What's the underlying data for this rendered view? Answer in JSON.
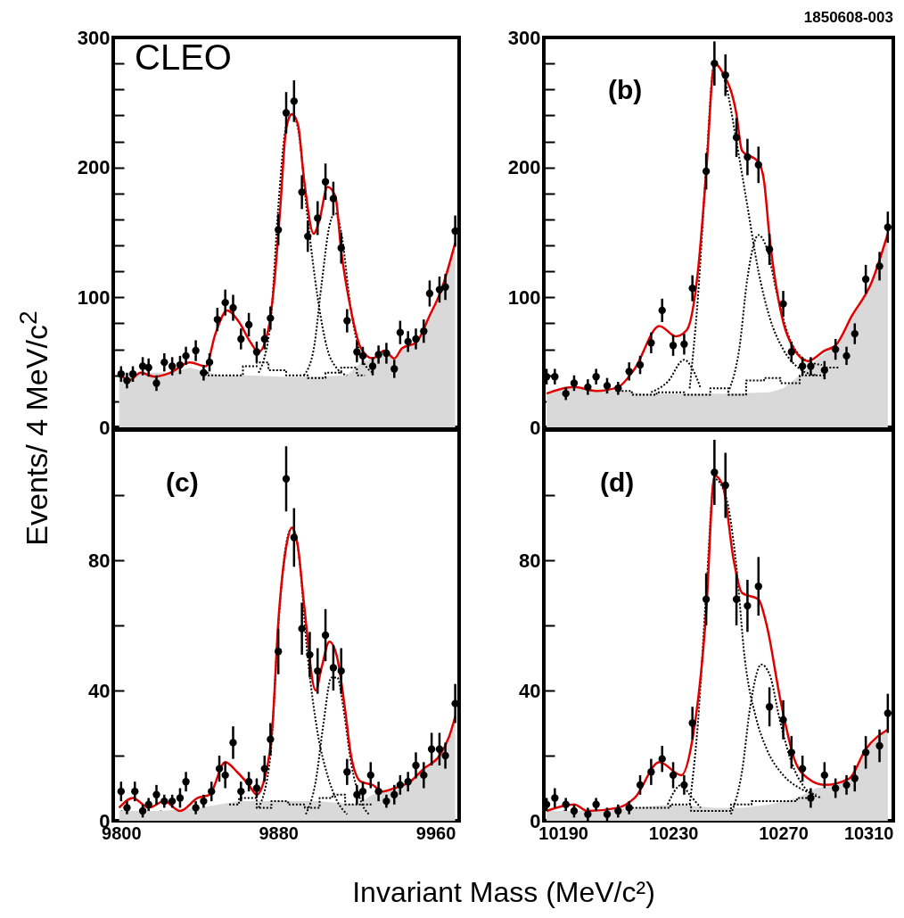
{
  "chart_data": [
    {
      "type": "scatter",
      "ylabel": "Events/ 4 MeV/c$^{2}$",
      "annotations": [
        "CLEO"
      ],
      "xlim": [
        9796,
        9972
      ],
      "ylim": [
        0,
        300
      ],
      "xticks": [
        9800,
        {
          "value": 9820,
          "label": null
        },
        {
          "value": 9840,
          "label": null
        },
        {
          "value": 9860,
          "label": null
        },
        9880,
        {
          "value": 9900,
          "label": null
        },
        {
          "value": 9920,
          "label": null
        },
        {
          "value": 9940,
          "label": null
        },
        9960
      ],
      "yticks": [
        0,
        {
          "value": 20,
          "label": null
        },
        {
          "value": 40,
          "label": null
        },
        {
          "value": 60,
          "label": null
        },
        {
          "value": 80,
          "label": null
        },
        100,
        {
          "value": 120,
          "label": null
        },
        {
          "value": 140,
          "label": null
        },
        {
          "value": 160,
          "label": null
        },
        {
          "value": 180,
          "label": null
        },
        200,
        {
          "value": 220,
          "label": null
        },
        {
          "value": 240,
          "label": null
        },
        {
          "value": 260,
          "label": null
        },
        {
          "value": 280,
          "label": null
        },
        300
      ],
      "tick_labels": "y",
      "series": [
        {
          "type": "area",
          "color": "#d9d9d9",
          "x": [
            9799,
            9810,
            9825,
            9835,
            9850,
            9865,
            9880,
            9900,
            9915,
            9922,
            9928,
            9934,
            9939,
            9943,
            9950,
            9957,
            9963,
            9970
          ],
          "values": [
            42,
            42,
            42,
            46,
            40,
            40,
            39,
            39,
            40,
            50,
            53,
            59,
            53,
            61,
            65,
            86,
            106,
            142
          ]
        },
        {
          "type": "step",
          "color": "#000000",
          "line_style": "dotted",
          "x": [
            9840,
            9848,
            9858,
            9866,
            9872,
            9878,
            9890,
            9900,
            9908,
            9916,
            9924
          ],
          "values": [
            42,
            40,
            40,
            47,
            50,
            44,
            40,
            38,
            42,
            46,
            40
          ]
        },
        {
          "type": "line",
          "color": "#000000",
          "line_style": "dotted",
          "x": [
            9870,
            9876,
            9880,
            9884,
            9887,
            9890,
            9895,
            9900,
            9905,
            9910,
            9915
          ],
          "values": [
            42,
            80,
            170,
            232,
            241,
            230,
            160,
            100,
            60,
            45,
            40
          ]
        },
        {
          "type": "line",
          "color": "#000000",
          "line_style": "dotted",
          "x": [
            9893,
            9898,
            9902,
            9906,
            9909,
            9912,
            9917,
            9922,
            9928
          ],
          "values": [
            40,
            60,
            110,
            155,
            165,
            150,
            90,
            55,
            42
          ]
        },
        {
          "type": "line",
          "color": "#e00000",
          "line_style": "solid",
          "x": [
            9799,
            9804,
            9810,
            9817,
            9825,
            9835,
            9843,
            9848,
            9854,
            9860,
            9866,
            9870,
            9875,
            9878,
            9881,
            9884,
            9887,
            9890,
            9893,
            9898,
            9901,
            9905,
            9909,
            9912,
            9917,
            9922,
            9928,
            9934,
            9939,
            9943,
            9950,
            9957,
            9963,
            9970
          ],
          "values": [
            42,
            36,
            42,
            39,
            42,
            50,
            47,
            72,
            90,
            81,
            65,
            58,
            76,
            112,
            169,
            230,
            241,
            233,
            192,
            149,
            160,
            185,
            178,
            136,
            90,
            61,
            53,
            59,
            53,
            61,
            65,
            86,
            106,
            142
          ]
        },
        {
          "type": "scatter",
          "color": "#000000",
          "marker": "circle",
          "x": [
            9800,
            9803,
            9806,
            9811,
            9814,
            9818,
            9822,
            9826,
            9830,
            9833,
            9838,
            9842,
            9845,
            9849,
            9853,
            9857,
            9861,
            9865,
            9869,
            9873,
            9876,
            9880,
            9884,
            9888,
            9892,
            9895,
            9900,
            9904,
            9908,
            9912,
            9915,
            9920,
            9923,
            9928,
            9931,
            9935,
            9939,
            9942,
            9946,
            9950,
            9954,
            9957,
            9962,
            9965,
            9970
          ],
          "values": [
            41,
            36,
            41,
            47,
            46,
            34,
            50,
            47,
            48,
            55,
            59,
            42,
            50,
            83,
            96,
            92,
            68,
            79,
            58,
            68,
            84,
            152,
            242,
            251,
            181,
            147,
            161,
            189,
            176,
            138,
            82,
            58,
            55,
            47,
            56,
            57,
            45,
            73,
            66,
            68,
            74,
            103,
            106,
            108,
            151
          ],
          "errors": [
            6,
            6,
            6,
            7,
            7,
            6,
            7,
            7,
            7,
            7,
            8,
            6,
            7,
            9,
            10,
            10,
            8,
            9,
            8,
            8,
            9,
            12,
            16,
            16,
            13,
            12,
            13,
            14,
            13,
            12,
            9,
            8,
            7,
            7,
            7,
            8,
            7,
            9,
            8,
            8,
            9,
            10,
            10,
            10,
            12
          ]
        }
      ]
    },
    {
      "type": "scatter",
      "annotations": [
        "(b)",
        "1850608-003"
      ],
      "xlim": [
        10183,
        10310
      ],
      "ylim": [
        0,
        300
      ],
      "xticks": [
        10190,
        {
          "value": 10210,
          "label": null
        },
        10230,
        {
          "value": 10250,
          "label": null
        },
        10270,
        {
          "value": 10290,
          "label": null
        },
        10310
      ],
      "yticks": [
        0,
        {
          "value": 20,
          "label": null
        },
        {
          "value": 40,
          "label": null
        },
        {
          "value": 60,
          "label": null
        },
        {
          "value": 80,
          "label": null
        },
        100,
        {
          "value": 120,
          "label": null
        },
        {
          "value": 140,
          "label": null
        },
        {
          "value": 160,
          "label": null
        },
        {
          "value": 180,
          "label": null
        },
        200,
        {
          "value": 220,
          "label": null
        },
        {
          "value": 240,
          "label": null
        },
        {
          "value": 260,
          "label": null
        },
        {
          "value": 280,
          "label": null
        },
        300
      ],
      "tick_labels": "y",
      "series": [
        {
          "type": "area",
          "color": "#d9d9d9",
          "x": [
            10184,
            10194,
            10202,
            10210,
            10220,
            10235,
            10250,
            10265,
            10270,
            10276,
            10282,
            10289,
            10295,
            10302,
            10308
          ],
          "values": [
            26,
            31,
            28,
            28,
            26,
            26,
            26,
            27,
            30,
            40,
            52,
            63,
            86,
            111,
            149
          ]
        },
        {
          "type": "step",
          "color": "#000000",
          "line_style": "dotted",
          "x": [
            10210,
            10220,
            10228,
            10240,
            10247,
            10253,
            10260,
            10266,
            10272,
            10280,
            10290
          ],
          "values": [
            28,
            25,
            27,
            25,
            30,
            25,
            36,
            38,
            34,
            40,
            46
          ]
        },
        {
          "type": "line",
          "color": "#000000",
          "line_style": "dotted",
          "x": [
            10222,
            10228,
            10234,
            10237,
            10240
          ],
          "values": [
            27,
            35,
            52,
            45,
            30
          ]
        },
        {
          "type": "line",
          "color": "#000000",
          "line_style": "dotted",
          "x": [
            10236,
            10239,
            10242,
            10245,
            10249,
            10253,
            10257,
            10261,
            10265,
            10270,
            10276,
            10282
          ],
          "values": [
            30,
            100,
            200,
            280,
            265,
            220,
            170,
            120,
            85,
            60,
            45,
            40
          ]
        },
        {
          "type": "line",
          "color": "#000000",
          "line_style": "dotted",
          "x": [
            10250,
            10254,
            10257,
            10261,
            10264,
            10268,
            10272,
            10278,
            10284
          ],
          "values": [
            27,
            60,
            115,
            148,
            138,
            100,
            70,
            52,
            48
          ]
        },
        {
          "type": "line",
          "color": "#e00000",
          "line_style": "solid",
          "x": [
            10184,
            10194,
            10202,
            10210,
            10216,
            10225,
            10231,
            10235,
            10239,
            10242,
            10245,
            10248,
            10253,
            10255,
            10261,
            10263,
            10265,
            10270,
            10274,
            10279,
            10285,
            10289,
            10295,
            10302,
            10308
          ],
          "values": [
            26,
            31,
            28,
            31,
            45,
            78,
            70,
            75,
            120,
            196,
            280,
            273,
            241,
            213,
            204,
            190,
            147,
            81,
            60,
            51,
            59,
            63,
            86,
            111,
            149
          ]
        },
        {
          "type": "scatter",
          "color": "#000000",
          "marker": "circle",
          "x": [
            10184,
            10187,
            10191,
            10194,
            10199,
            10202,
            10206,
            10210,
            10214,
            10218,
            10222,
            10226,
            10230,
            10234,
            10237,
            10242,
            10245,
            10249,
            10253,
            10257,
            10261,
            10265,
            10270,
            10273,
            10277,
            10280,
            10285,
            10289,
            10293,
            10296,
            10300,
            10305,
            10308
          ],
          "values": [
            39,
            39,
            26,
            34,
            31,
            39,
            32,
            30,
            43,
            48,
            65,
            90,
            63,
            64,
            107,
            197,
            280,
            271,
            223,
            208,
            202,
            137,
            95,
            58,
            47,
            47,
            44,
            60,
            55,
            72,
            114,
            124,
            154
          ],
          "errors": [
            6,
            6,
            5,
            6,
            6,
            6,
            6,
            5,
            7,
            7,
            8,
            9,
            8,
            8,
            10,
            14,
            17,
            16,
            15,
            14,
            14,
            12,
            10,
            8,
            7,
            7,
            7,
            8,
            7,
            8,
            11,
            11,
            12
          ]
        }
      ]
    },
    {
      "type": "scatter",
      "xlabel": "Invariant Mass (MeV/c²)",
      "annotations": [
        "(c)"
      ],
      "xlim": [
        9796,
        9972
      ],
      "ylim": [
        0,
        120
      ],
      "xticks": [
        9800,
        {
          "value": 9820,
          "label": null
        },
        {
          "value": 9840,
          "label": null
        },
        {
          "value": 9860,
          "label": null
        },
        9880,
        {
          "value": 9900,
          "label": null
        },
        {
          "value": 9920,
          "label": null
        },
        {
          "value": 9940,
          "label": null
        },
        9960
      ],
      "yticks": [
        0,
        {
          "value": 20,
          "label": null
        },
        40,
        {
          "value": 60,
          "label": null
        },
        80,
        {
          "value": 100,
          "label": null
        }
      ],
      "series": [
        {
          "type": "area",
          "color": "#d9d9d9",
          "x": [
            9799,
            9820,
            9840,
            9860,
            9880,
            9900,
            9920,
            9928,
            9935,
            9947,
            9954,
            9962,
            9967,
            9970
          ],
          "values": [
            3,
            3,
            4,
            6,
            6,
            6,
            5,
            8,
            9,
            12,
            16,
            20,
            26,
            32
          ]
        },
        {
          "type": "step",
          "color": "#000000",
          "line_style": "dotted",
          "x": [
            9855,
            9865,
            9873,
            9880,
            9890,
            9897,
            9905,
            9910,
            9918,
            9928
          ],
          "values": [
            5,
            7,
            4,
            6,
            5,
            4,
            7,
            8,
            5,
            5
          ]
        },
        {
          "type": "line",
          "color": "#000000",
          "line_style": "dotted",
          "x": [
            9870,
            9876,
            9880,
            9884,
            9887,
            9890,
            9895,
            9900,
            9905,
            9910,
            9915
          ],
          "values": [
            4,
            20,
            60,
            85,
            90,
            84,
            50,
            27,
            14,
            6,
            2
          ]
        },
        {
          "type": "line",
          "color": "#000000",
          "line_style": "dotted",
          "x": [
            9894,
            9899,
            9903,
            9907,
            9910,
            9913,
            9917,
            9922,
            9926
          ],
          "values": [
            2,
            12,
            30,
            44,
            44,
            35,
            18,
            6,
            2
          ]
        },
        {
          "type": "line",
          "color": "#e00000",
          "line_style": "solid",
          "x": [
            9799,
            9806,
            9814,
            9822,
            9830,
            9839,
            9845,
            9853,
            9859,
            9865,
            9869,
            9873,
            9877,
            9880,
            9884,
            9887,
            9890,
            9893,
            9899,
            9902,
            9906,
            9910,
            9914,
            9917,
            9922,
            9928,
            9933,
            9939,
            9947,
            9954,
            9962,
            9967,
            9970
          ],
          "values": [
            4,
            7,
            4,
            6,
            3,
            7,
            8,
            18,
            15,
            11,
            8,
            13,
            29,
            61,
            84,
            90,
            84,
            67,
            40,
            47,
            55,
            50,
            34,
            20,
            12,
            11,
            9,
            10,
            12,
            16,
            20,
            26,
            32
          ]
        },
        {
          "type": "scatter",
          "color": "#000000",
          "marker": "circle",
          "x": [
            9800,
            9803,
            9807,
            9811,
            9814,
            9818,
            9822,
            9826,
            9830,
            9833,
            9838,
            9842,
            9846,
            9850,
            9853,
            9857,
            9861,
            9865,
            9869,
            9873,
            9876,
            9880,
            9884,
            9888,
            9892,
            9896,
            9900,
            9904,
            9908,
            9912,
            9915,
            9920,
            9923,
            9927,
            9931,
            9935,
            9939,
            9942,
            9946,
            9950,
            9954,
            9958,
            9962,
            9965,
            9970
          ],
          "values": [
            9,
            4,
            9,
            3,
            5,
            8,
            6,
            6,
            7,
            12,
            4,
            6,
            9,
            16,
            14,
            24,
            9,
            12,
            10,
            16,
            25,
            52,
            105,
            87,
            59,
            51,
            46,
            57,
            47,
            46,
            15,
            8,
            9,
            14,
            9,
            6,
            8,
            11,
            12,
            17,
            14,
            22,
            22,
            20,
            36
          ],
          "errors": [
            3,
            2,
            3,
            2,
            2,
            3,
            2,
            2,
            3,
            3,
            2,
            2,
            3,
            4,
            4,
            5,
            3,
            3,
            3,
            4,
            5,
            7,
            10,
            9,
            8,
            7,
            7,
            8,
            7,
            7,
            4,
            3,
            3,
            4,
            3,
            2,
            3,
            3,
            3,
            4,
            4,
            5,
            5,
            4,
            6
          ]
        }
      ]
    },
    {
      "type": "scatter",
      "annotations": [
        "(d)"
      ],
      "xlim": [
        10183,
        10310
      ],
      "ylim": [
        0,
        120
      ],
      "xticks": [
        10190,
        {
          "value": 10210,
          "label": null
        },
        10230,
        {
          "value": 10250,
          "label": null
        },
        10270,
        {
          "value": 10290,
          "label": null
        },
        10310
      ],
      "yticks": [
        0,
        {
          "value": 20,
          "label": null
        },
        40,
        {
          "value": 60,
          "label": null
        },
        80,
        {
          "value": 100,
          "label": null
        }
      ],
      "series": [
        {
          "type": "area",
          "color": "#d9d9d9",
          "x": [
            10184,
            10200,
            10215,
            10230,
            10245,
            10255,
            10265,
            10275,
            10282,
            10290,
            10294,
            10300,
            10308
          ],
          "values": [
            3,
            3,
            4,
            5,
            4,
            4,
            5,
            7,
            10,
            11,
            13,
            22,
            28
          ]
        },
        {
          "type": "step",
          "color": "#000000",
          "line_style": "dotted",
          "x": [
            10215,
            10225,
            10233,
            10240,
            10247,
            10255,
            10262,
            10270,
            10280
          ],
          "values": [
            4,
            4,
            5,
            3,
            3,
            5,
            6,
            6,
            7
          ]
        },
        {
          "type": "line",
          "color": "#000000",
          "line_style": "dotted",
          "x": [
            10228,
            10233,
            10236,
            10240
          ],
          "values": [
            5,
            11,
            8,
            4
          ]
        },
        {
          "type": "line",
          "color": "#000000",
          "line_style": "dotted",
          "x": [
            10236,
            10239,
            10242,
            10245,
            10249,
            10253,
            10256,
            10260,
            10264,
            10270,
            10276,
            10282
          ],
          "values": [
            5,
            30,
            70,
            105,
            100,
            78,
            50,
            32,
            22,
            14,
            10,
            8
          ]
        },
        {
          "type": "line",
          "color": "#000000",
          "line_style": "dotted",
          "x": [
            10251,
            10255,
            10258,
            10262,
            10265,
            10269,
            10273,
            10278,
            10284
          ],
          "values": [
            2,
            15,
            35,
            48,
            45,
            30,
            18,
            10,
            7
          ]
        },
        {
          "type": "line",
          "color": "#e00000",
          "line_style": "solid",
          "x": [
            10184,
            10194,
            10199,
            10210,
            10216,
            10225,
            10233,
            10237,
            10242,
            10245,
            10248,
            10252,
            10255,
            10261,
            10264,
            10269,
            10274,
            10279,
            10285,
            10294,
            10300,
            10308
          ],
          "values": [
            3,
            5,
            3,
            4,
            7,
            18,
            14,
            25,
            64,
            106,
            103,
            80,
            70,
            68,
            60,
            37,
            19,
            13,
            11,
            13,
            22,
            28
          ]
        },
        {
          "type": "scatter",
          "color": "#000000",
          "marker": "circle",
          "x": [
            10184,
            10187,
            10191,
            10194,
            10199,
            10202,
            10206,
            10210,
            10214,
            10218,
            10222,
            10226,
            10230,
            10234,
            10237,
            10242,
            10245,
            10249,
            10253,
            10257,
            10261,
            10265,
            10270,
            10273,
            10277,
            10280,
            10285,
            10289,
            10293,
            10296,
            10300,
            10305,
            10308
          ],
          "values": [
            5,
            7,
            5,
            3,
            2,
            5,
            2,
            3,
            4,
            11,
            15,
            19,
            14,
            11,
            30,
            68,
            107,
            103,
            68,
            66,
            72,
            35,
            31,
            21,
            16,
            7,
            14,
            10,
            11,
            13,
            21,
            23,
            33
          ],
          "errors": [
            2,
            3,
            2,
            2,
            2,
            2,
            2,
            2,
            2,
            3,
            4,
            4,
            4,
            3,
            5,
            8,
            10,
            10,
            8,
            8,
            9,
            6,
            6,
            5,
            4,
            3,
            4,
            3,
            3,
            4,
            5,
            5,
            6
          ]
        }
      ]
    }
  ]
}
